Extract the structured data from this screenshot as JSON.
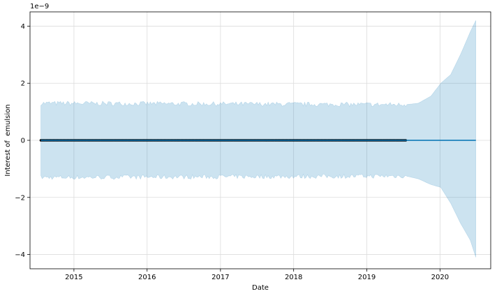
{
  "chart_data": {
    "type": "line",
    "xlabel": "Date",
    "ylabel": "Interest of  emulsion",
    "y_scale_label": "1e−9",
    "xlim": [
      "2014-05-27",
      "2020-09-10"
    ],
    "ylim": [
      -4.5,
      4.5
    ],
    "x_ticks": [
      "2015",
      "2016",
      "2017",
      "2018",
      "2019",
      "2020"
    ],
    "y_ticks": [
      -4,
      -2,
      0,
      2,
      4
    ],
    "y_tick_labels": [
      "−4",
      "−2",
      "0",
      "2",
      "4"
    ],
    "grid": true,
    "colors": {
      "forecast_line": "#0072B2",
      "uncertainty_band": "#0072B2",
      "observed_points": "#000000"
    },
    "observed": {
      "x_start": "2014-07-20",
      "x_end": "2019-07-14",
      "frequency": "weekly",
      "value": 0
    },
    "forecast": {
      "x": [
        "2014-07-20",
        "2019-07-14",
        "2020-06-28"
      ],
      "yhat": [
        0,
        0,
        0
      ]
    },
    "uncertainty": {
      "x": [
        "2014-07-20",
        "2019-07-14",
        "2019-09-15",
        "2019-11-17",
        "2020-01-05",
        "2020-02-23",
        "2020-04-12",
        "2020-05-31",
        "2020-06-28"
      ],
      "upper": [
        1.3,
        1.25,
        1.3,
        1.55,
        2.0,
        2.3,
        3.0,
        3.8,
        4.2
      ],
      "lower": [
        -1.3,
        -1.25,
        -1.35,
        -1.55,
        -1.65,
        -2.2,
        -2.9,
        -3.5,
        -4.1
      ]
    }
  }
}
